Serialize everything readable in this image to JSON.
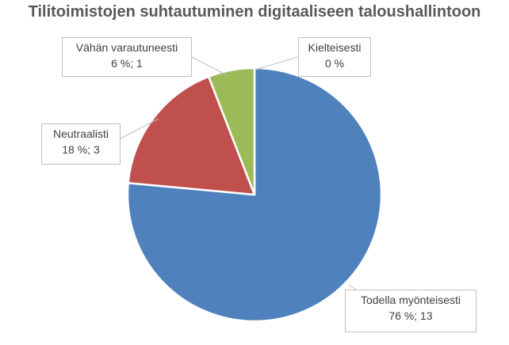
{
  "chart_data": {
    "type": "pie",
    "title": "Tilitoimistojen suhtautuminen digitaaliseen taloushallintoon",
    "slices": [
      {
        "name": "Todella myönteisesti",
        "value": 13,
        "percent": 76,
        "color": "#4f81bd",
        "label_line2": "76 %; 13"
      },
      {
        "name": "Neutraalisti",
        "value": 3,
        "percent": 18,
        "color": "#c0504d",
        "label_line2": "18 %; 3"
      },
      {
        "name": "Vähän varautuneesti",
        "value": 1,
        "percent": 6,
        "color": "#9bbb59",
        "label_line2": "6 %; 1"
      },
      {
        "name": "Kielteisesti",
        "value": 0,
        "percent": 0,
        "color": "#8064a2",
        "label_line2": "0 %"
      }
    ]
  }
}
